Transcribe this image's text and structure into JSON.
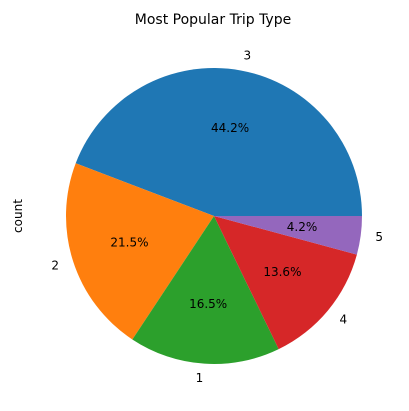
{
  "chart_data": {
    "type": "pie",
    "title": "Most Popular Trip Type",
    "ylabel": "count",
    "categories": [
      "3",
      "2",
      "1",
      "4",
      "5"
    ],
    "values": [
      44.2,
      21.5,
      16.5,
      13.6,
      4.2
    ],
    "pct_labels": [
      "44.2%",
      "21.5%",
      "16.5%",
      "13.6%",
      "4.2%"
    ],
    "colors": [
      "#1f77b4",
      "#ff7f0e",
      "#2ca02c",
      "#d62728",
      "#9467bd"
    ],
    "start_angle_deg": 0,
    "direction": "counterclockwise"
  }
}
